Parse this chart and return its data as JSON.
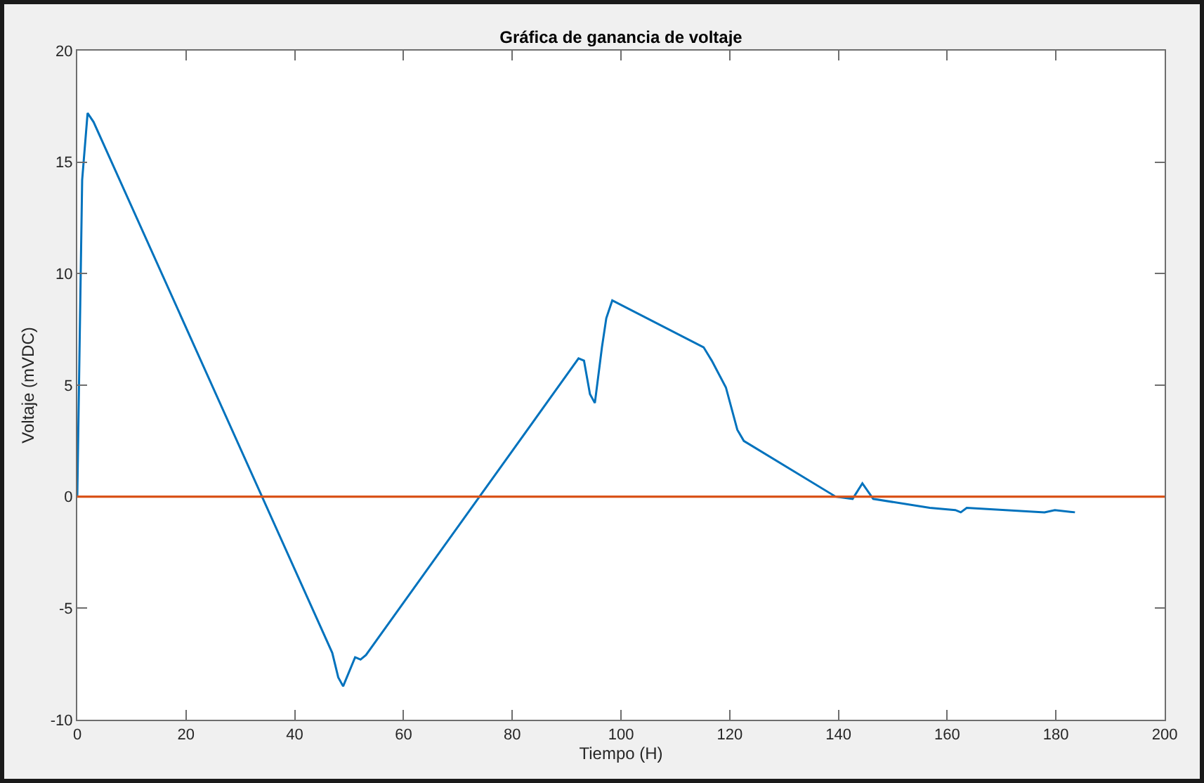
{
  "chart_data": {
    "type": "line",
    "title": "Gráfica de ganancia de voltaje",
    "xlabel": "Tiempo (H)",
    "ylabel": "Voltaje (mVDC)",
    "x": [
      0,
      0.9,
      1.9,
      3.0,
      46.9,
      48.0,
      48.9,
      51.1,
      52.1,
      53.1,
      92.2,
      93.2,
      94.3,
      95.2,
      96.5,
      97.3,
      98.4,
      115.2,
      116.7,
      119.3,
      121.4,
      122.6,
      139.5,
      142.6,
      144.4,
      146.4,
      156.8,
      161.5,
      162.5,
      163.6,
      177.9,
      179.8,
      183.5
    ],
    "series": [
      {
        "color": "#0072bd",
        "values": [
          0,
          14.2,
          17.2,
          16.8,
          -7.0,
          -8.1,
          -8.5,
          -7.2,
          -7.3,
          -7.1,
          6.2,
          6.1,
          4.6,
          4.2,
          6.7,
          8.0,
          8.8,
          6.7,
          6.1,
          4.9,
          3.0,
          2.5,
          0.0,
          -0.1,
          0.6,
          -0.1,
          -0.5,
          -0.6,
          -0.7,
          -0.5,
          -0.7,
          -0.6,
          -0.7
        ]
      }
    ],
    "xlim": [
      0,
      200
    ],
    "xticks": [
      0,
      20,
      40,
      60,
      80,
      100,
      120,
      140,
      160,
      180,
      200
    ],
    "ylim": [
      -10,
      20
    ],
    "yticks": [
      -10,
      -5,
      0,
      5,
      10,
      15,
      20
    ],
    "grid": false,
    "marker": "none",
    "line_style": "solid",
    "ref_lines": [
      {
        "axis": "y",
        "value": 0,
        "color": "#d95319"
      }
    ]
  }
}
